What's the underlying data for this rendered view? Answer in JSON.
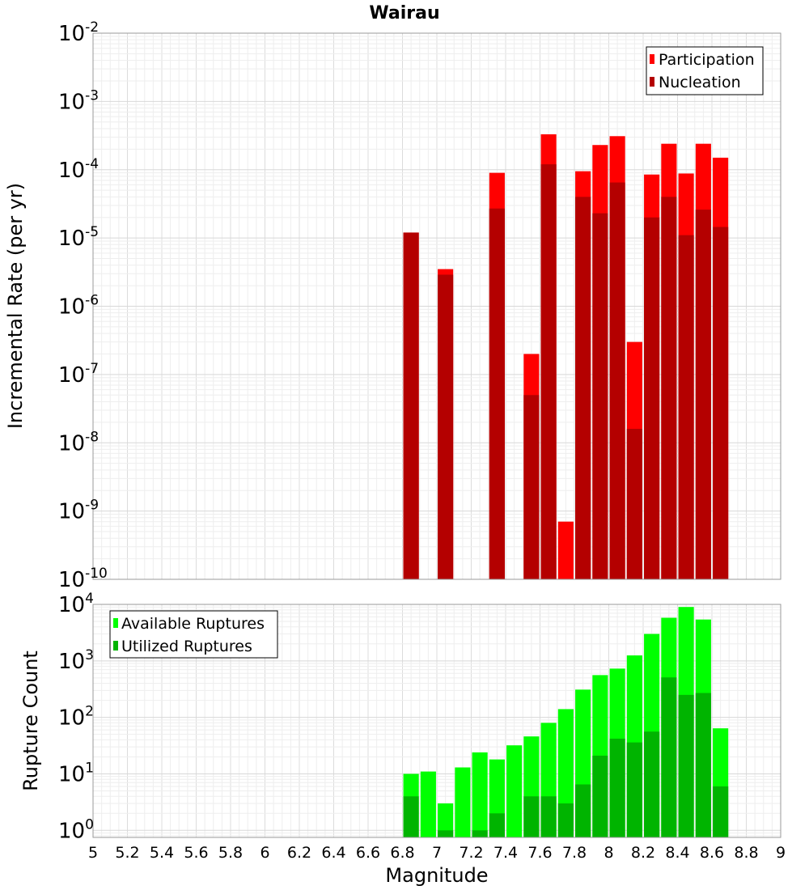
{
  "chart_data": [
    {
      "type": "bar",
      "title": "Wairau",
      "xlabel": "",
      "ylabel": "Incremental Rate (per yr)",
      "yscale": "log",
      "ylim": [
        1e-10,
        0.01
      ],
      "xlim": [
        5,
        9
      ],
      "x_ticks": [
        "5",
        "5.2",
        "5.4",
        "5.6",
        "5.8",
        "6",
        "6.2",
        "6.4",
        "6.6",
        "6.8",
        "7",
        "7.2",
        "7.4",
        "7.6",
        "7.8",
        "8",
        "8.2",
        "8.4",
        "8.6",
        "8.8",
        "9"
      ],
      "y_ticks": [
        {
          "base": "10",
          "exp": "-10"
        },
        {
          "base": "10",
          "exp": "-9"
        },
        {
          "base": "10",
          "exp": "-8"
        },
        {
          "base": "10",
          "exp": "-7"
        },
        {
          "base": "10",
          "exp": "-6"
        },
        {
          "base": "10",
          "exp": "-5"
        },
        {
          "base": "10",
          "exp": "-4"
        },
        {
          "base": "10",
          "exp": "-3"
        },
        {
          "base": "10",
          "exp": "-2"
        }
      ],
      "legend_position": "top-right",
      "bar_width": 0.09,
      "x": [
        6.85,
        7.05,
        7.35,
        7.55,
        7.65,
        7.75,
        7.85,
        7.95,
        8.05,
        8.15,
        8.25,
        8.35,
        8.45,
        8.55,
        8.65
      ],
      "series": [
        {
          "name": "Participation",
          "color": "#ff0000",
          "values": [
            1.2e-05,
            3.5e-06,
            9e-05,
            2e-07,
            0.00033,
            7e-10,
            9.5e-05,
            0.00023,
            0.00031,
            3e-07,
            8.5e-05,
            0.00024,
            8.8e-05,
            0.00024,
            0.00015
          ]
        },
        {
          "name": "Nucleation",
          "color": "#b40000",
          "values": [
            1.2e-05,
            2.9e-06,
            2.7e-05,
            5e-08,
            0.00012,
            0,
            4e-05,
            2.3e-05,
            6.5e-05,
            1.6e-08,
            2e-05,
            4e-05,
            1.1e-05,
            2.6e-05,
            1.45e-05
          ]
        }
      ]
    },
    {
      "type": "bar",
      "title": "",
      "xlabel": "Magnitude",
      "ylabel": "Rupture Count",
      "yscale": "log",
      "ylim": [
        0.75,
        10000
      ],
      "xlim": [
        5,
        9
      ],
      "x_ticks": [
        "5",
        "5.2",
        "5.4",
        "5.6",
        "5.8",
        "6",
        "6.2",
        "6.4",
        "6.6",
        "6.8",
        "7",
        "7.2",
        "7.4",
        "7.6",
        "7.8",
        "8",
        "8.2",
        "8.4",
        "8.6",
        "8.8",
        "9"
      ],
      "y_ticks": [
        {
          "base": "10",
          "exp": "0"
        },
        {
          "base": "10",
          "exp": "1"
        },
        {
          "base": "10",
          "exp": "2"
        },
        {
          "base": "10",
          "exp": "3"
        },
        {
          "base": "10",
          "exp": "4"
        }
      ],
      "legend_position": "top-left",
      "bar_width": 0.09,
      "x": [
        6.85,
        6.95,
        7.05,
        7.15,
        7.25,
        7.35,
        7.45,
        7.55,
        7.65,
        7.75,
        7.85,
        7.95,
        8.05,
        8.15,
        8.25,
        8.35,
        8.45,
        8.55,
        8.65
      ],
      "series": [
        {
          "name": "Available Ruptures",
          "color": "#00ff00",
          "values": [
            10,
            11,
            3,
            13,
            24,
            18,
            32,
            46,
            80,
            140,
            310,
            560,
            730,
            1250,
            3000,
            5800,
            9000,
            5400,
            64
          ]
        },
        {
          "name": "Utilized Ruptures",
          "color": "#00b400",
          "values": [
            4,
            0,
            1,
            0,
            1,
            2,
            0,
            4,
            4,
            3,
            6.5,
            21,
            42,
            36,
            56,
            510,
            250,
            270,
            6
          ]
        }
      ]
    }
  ]
}
